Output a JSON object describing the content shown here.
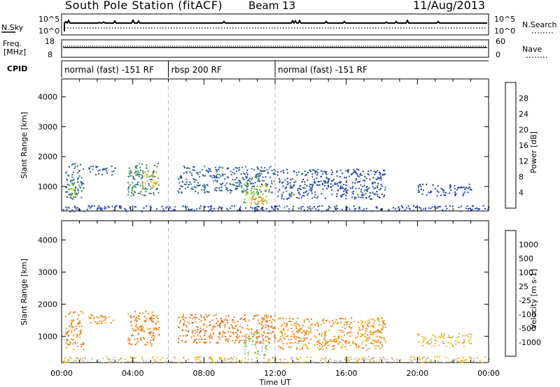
{
  "header": {
    "station": "South Pole Station (fitACF)",
    "beam": "Beam 13",
    "date": "11/Aug/2013"
  },
  "aux_panels": {
    "nsky_label": "N.Sky",
    "nsky_ticks": [
      "10^5",
      "10^0"
    ],
    "nsearch_label": "N.Search",
    "nsearch_ticks": [
      "10^5",
      "10^0"
    ],
    "freq_label": "Freq.",
    "freq_unit": "[MHz]",
    "freq_ticks": [
      "18",
      "8"
    ],
    "nave_label": "Nave",
    "nave_ticks": [
      "60",
      "0"
    ],
    "cpid_label": "CPID"
  },
  "cpid_segments": [
    {
      "label": "normal (fast) -151 RF",
      "start": 0,
      "end": 6
    },
    {
      "label": "rbsp 200 RF",
      "start": 6,
      "end": 12
    },
    {
      "label": "normal (fast) -151 RF",
      "start": 12,
      "end": 24
    }
  ],
  "axes": {
    "ylabel": "Slant Range [km]",
    "xlabel": "Time UT",
    "yticks": [
      "4000",
      "3000",
      "2000",
      "1000"
    ],
    "xticks": [
      "00:00",
      "04:00",
      "08:00",
      "12:00",
      "16:00",
      "20:00",
      "00:00"
    ]
  },
  "power_scale": {
    "title": "Power [dB]",
    "labels": [
      "28",
      "24",
      "20",
      "16",
      "12",
      "8",
      "4"
    ],
    "colors": [
      "#0019ff",
      "#1f3fb7",
      "#2b6a8a",
      "#3a8d5f",
      "#6fbf2a",
      "#d6d61a",
      "#f0a01a",
      "#f07018",
      "#e84010",
      "#d40000"
    ]
  },
  "velocity_scale": {
    "title": "Velocity [m s-1]",
    "labels": [
      "1000",
      "500",
      "100",
      "25",
      "-25",
      "-100",
      "-500",
      "-1000"
    ],
    "colors": [
      "#2a3f9f",
      "#2e6f95",
      "#3c8f6a",
      "#6dc13a",
      "#bebebe",
      "#f4b000",
      "#f08418",
      "#e85a10",
      "#d22000",
      "#d40000"
    ]
  },
  "chart_data": [
    {
      "type": "heatmap",
      "title": "Power [dB]",
      "xlabel": "Time UT",
      "ylabel": "Slant Range [km]",
      "xlim": [
        0,
        24
      ],
      "ylim": [
        180,
        4600
      ],
      "clim": [
        0,
        30
      ],
      "blobs": [
        {
          "t": [
            0.2,
            1.2
          ],
          "r": [
            600,
            1800
          ],
          "value": 7
        },
        {
          "t": [
            0.5,
            1.0
          ],
          "r": [
            700,
            1100
          ],
          "value": 14
        },
        {
          "t": [
            1.5,
            3.0
          ],
          "r": [
            1400,
            1700
          ],
          "value": 6
        },
        {
          "t": [
            3.7,
            5.5
          ],
          "r": [
            700,
            1800
          ],
          "value": 10
        },
        {
          "t": [
            4.5,
            5.4
          ],
          "r": [
            1000,
            1500
          ],
          "value": 18
        },
        {
          "t": [
            6.5,
            12.0
          ],
          "r": [
            800,
            1700
          ],
          "value": 7
        },
        {
          "t": [
            10.2,
            11.5
          ],
          "r": [
            400,
            1100
          ],
          "value": 14
        },
        {
          "t": [
            10.6,
            11.4
          ],
          "r": [
            400,
            700
          ],
          "value": 20
        },
        {
          "t": [
            12.1,
            18.2
          ],
          "r": [
            600,
            1600
          ],
          "value": 5
        },
        {
          "t": [
            20.0,
            23.0
          ],
          "r": [
            700,
            1100
          ],
          "value": 5
        },
        {
          "t": [
            0.0,
            24.0
          ],
          "r": [
            180,
            380
          ],
          "value": 5
        }
      ]
    },
    {
      "type": "heatmap",
      "title": "Velocity [m s-1]",
      "xlabel": "Time UT",
      "ylabel": "Slant Range [km]",
      "xlim": [
        0,
        24
      ],
      "ylim": [
        180,
        4600
      ],
      "clim": [
        -1000,
        1000
      ],
      "blobs": [
        {
          "t": [
            0.2,
            1.2
          ],
          "r": [
            600,
            1800
          ],
          "value": -300
        },
        {
          "t": [
            1.5,
            3.0
          ],
          "r": [
            1400,
            1700
          ],
          "value": -250
        },
        {
          "t": [
            3.7,
            5.5
          ],
          "r": [
            700,
            1800
          ],
          "value": -300
        },
        {
          "t": [
            6.5,
            12.0
          ],
          "r": [
            800,
            1700
          ],
          "value": -350
        },
        {
          "t": [
            10.2,
            11.5
          ],
          "r": [
            400,
            1100
          ],
          "value": 150
        },
        {
          "t": [
            12.1,
            18.2
          ],
          "r": [
            600,
            1600
          ],
          "value": -250
        },
        {
          "t": [
            20.0,
            23.0
          ],
          "r": [
            700,
            1100
          ],
          "value": -20
        },
        {
          "t": [
            0.0,
            24.0
          ],
          "r": [
            180,
            380
          ],
          "value": 0
        }
      ]
    }
  ]
}
